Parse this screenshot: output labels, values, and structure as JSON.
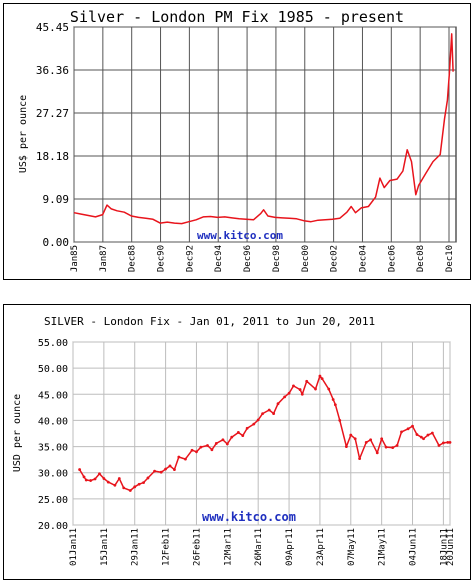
{
  "chart_data": [
    {
      "type": "line",
      "title": "Silver - London PM Fix 1985 - present",
      "ylabel": "US$ per ounce",
      "watermark": "www.kitco.com",
      "ylim": [
        0,
        45.45
      ],
      "yticks": [
        "0.00",
        "9.09",
        "18.18",
        "27.27",
        "36.36",
        "45.45"
      ],
      "xticks": [
        "Jan85",
        "Jan87",
        "Dec88",
        "Dec90",
        "Dec92",
        "Dec94",
        "Dec96",
        "Dec98",
        "Dec00",
        "Dec02",
        "Dec04",
        "Dec06",
        "Dec08",
        "Dec10"
      ],
      "grid": true,
      "line_color": "#e8141c",
      "series": [
        {
          "x": [
            1985.0,
            1985.5,
            1986.0,
            1986.5,
            1987.0,
            1987.3,
            1987.6,
            1988.0,
            1988.5,
            1989.0,
            1989.5,
            1990.0,
            1990.5,
            1991.0,
            1991.5,
            1992.0,
            1992.5,
            1993.0,
            1993.5,
            1994.0,
            1994.5,
            1995.0,
            1995.5,
            1996.0,
            1996.5,
            1997.0,
            1997.5,
            1998.0,
            1998.2,
            1998.5,
            1999.0,
            1999.5,
            2000.0,
            2000.5,
            2001.0,
            2001.5,
            2002.0,
            2002.5,
            2003.0,
            2003.5,
            2004.0,
            2004.3,
            2004.6,
            2005.0,
            2005.5,
            2006.0,
            2006.3,
            2006.6,
            2007.0,
            2007.5,
            2007.9,
            2008.2,
            2008.5,
            2008.8,
            2009.0,
            2009.5,
            2010.0,
            2010.5,
            2010.8,
            2011.0,
            2011.15,
            2011.3,
            2011.4
          ],
          "values": [
            6.2,
            5.9,
            5.6,
            5.3,
            5.8,
            7.8,
            7.0,
            6.6,
            6.3,
            5.5,
            5.2,
            5.0,
            4.8,
            4.0,
            4.2,
            4.0,
            3.9,
            4.3,
            4.7,
            5.3,
            5.4,
            5.2,
            5.3,
            5.1,
            4.9,
            4.8,
            4.7,
            6.0,
            6.8,
            5.5,
            5.2,
            5.1,
            5.0,
            4.9,
            4.5,
            4.3,
            4.6,
            4.7,
            4.8,
            5.0,
            6.3,
            7.5,
            6.2,
            7.2,
            7.5,
            9.5,
            13.5,
            11.5,
            13.0,
            13.3,
            15.0,
            19.5,
            17.0,
            10.0,
            12.0,
            14.5,
            17.0,
            18.5,
            26.0,
            30.0,
            36.0,
            44.0,
            36.0
          ]
        }
      ]
    },
    {
      "type": "line",
      "title": "SILVER - London Fix - Jan 01, 2011 to Jun 20, 2011",
      "ylabel": "USD per ounce",
      "watermark": "www.kitco.com",
      "ylim": [
        20,
        55
      ],
      "yticks": [
        "20.00",
        "25.00",
        "30.00",
        "35.00",
        "40.00",
        "45.00",
        "50.00",
        "55.00"
      ],
      "xticks": [
        "01Jan11",
        "15Jan11",
        "29Jan11",
        "12Feb11",
        "26Feb11",
        "12Mar11",
        "26Mar11",
        "09Apr11",
        "23Apr11",
        "07May11",
        "21May11",
        "04Jun11",
        "18Jun11",
        "20Jun11"
      ],
      "grid": true,
      "line_color": "#e8141c",
      "series": [
        {
          "x": [
            3,
            5,
            6,
            8,
            10,
            12,
            14,
            16,
            19,
            21,
            23,
            26,
            28,
            30,
            32,
            34,
            37,
            40,
            42,
            44,
            46,
            48,
            51,
            54,
            56,
            58,
            61,
            63,
            65,
            68,
            70,
            72,
            75,
            77,
            79,
            82,
            84,
            86,
            89,
            91,
            93,
            96,
            98,
            100,
            103,
            104,
            106,
            110,
            112,
            113,
            116,
            118,
            119,
            121,
            124,
            126,
            128,
            130,
            133,
            135,
            138,
            140,
            142,
            145,
            147,
            149,
            152,
            154,
            156,
            158,
            159,
            161,
            163,
            166,
            168,
            170,
            171
          ],
          "values": [
            30.6,
            29.2,
            28.6,
            28.5,
            28.8,
            29.8,
            28.9,
            28.2,
            27.6,
            28.9,
            27.1,
            26.6,
            27.3,
            27.8,
            28.1,
            29.0,
            30.3,
            30.1,
            30.7,
            31.3,
            30.6,
            33.0,
            32.6,
            34.3,
            34.0,
            34.9,
            35.2,
            34.4,
            35.6,
            36.3,
            35.5,
            36.8,
            37.7,
            37.1,
            38.5,
            39.3,
            40.1,
            41.3,
            42.0,
            41.3,
            43.2,
            44.5,
            45.2,
            46.6,
            45.9,
            45.0,
            47.5,
            46.0,
            48.5,
            48.0,
            46.0,
            44.0,
            43.0,
            40.0,
            35.0,
            37.2,
            36.5,
            32.7,
            35.8,
            36.3,
            33.8,
            36.5,
            34.9,
            34.8,
            35.2,
            37.8,
            38.4,
            38.9,
            37.3,
            36.8,
            36.5,
            37.2,
            37.6,
            35.2,
            35.7,
            35.8,
            35.8
          ]
        }
      ]
    }
  ]
}
